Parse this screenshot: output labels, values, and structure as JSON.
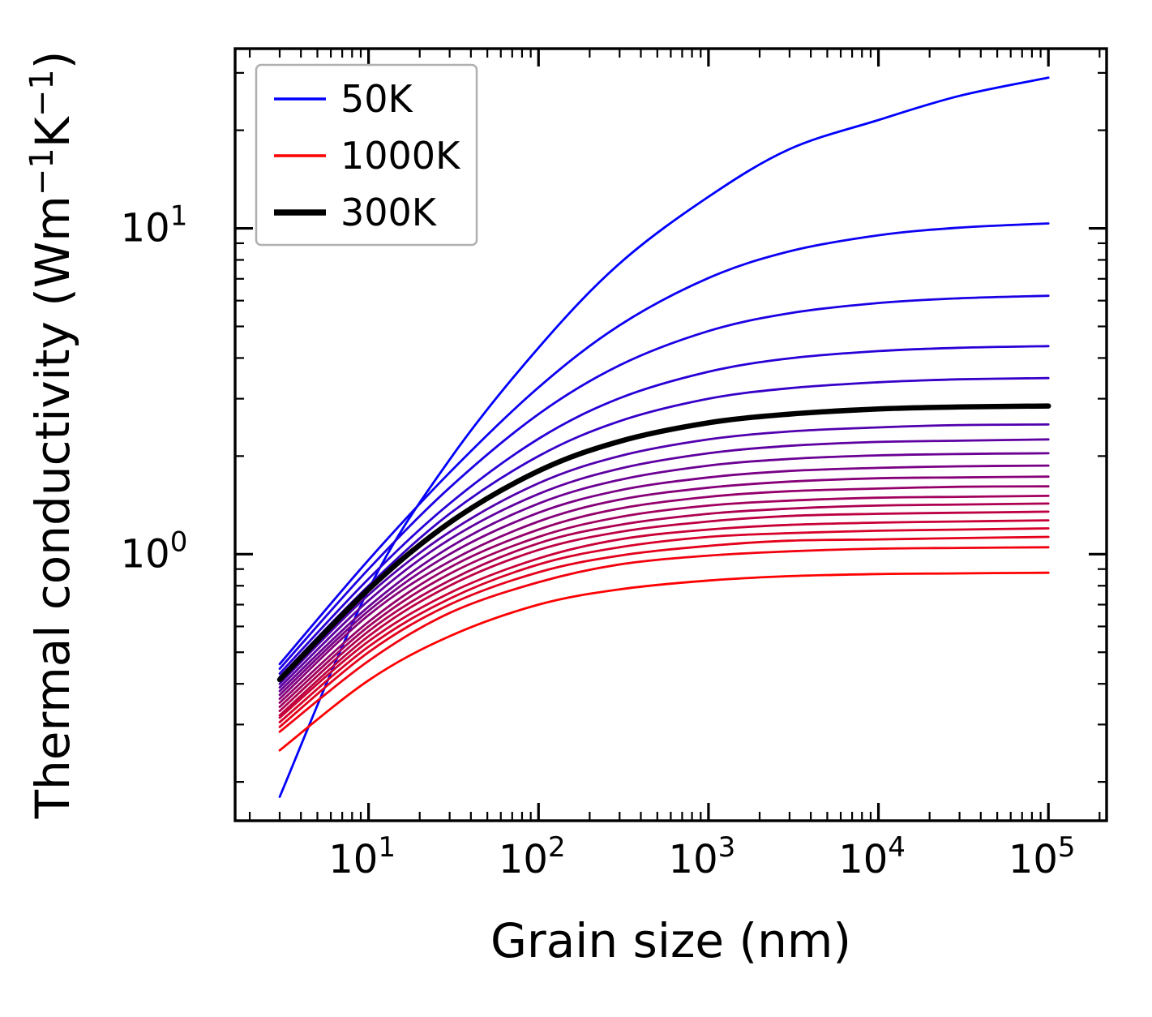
{
  "chart_data": {
    "type": "line",
    "title": "",
    "xlabel": "Grain size (nm)",
    "ylabel": "Thermal conductivity (Wm⁻¹K⁻¹)",
    "ylabel_parts": [
      {
        "t": "Thermal conductivity (Wm"
      },
      {
        "sup": "−1"
      },
      {
        "t": "K"
      },
      {
        "sup": "−1"
      },
      {
        "t": ")"
      }
    ],
    "x_scale": "log",
    "y_scale": "log",
    "xlim": [
      1.64,
      220000
    ],
    "ylim": [
      0.152,
      35.6
    ],
    "grid": false,
    "legend_position": "upper-left",
    "x_ticks": [
      {
        "value": 10,
        "label": "10¹",
        "mantissa": "10",
        "exponent": "1"
      },
      {
        "value": 100,
        "label": "10²",
        "mantissa": "10",
        "exponent": "2"
      },
      {
        "value": 1000,
        "label": "10³",
        "mantissa": "10",
        "exponent": "3"
      },
      {
        "value": 10000,
        "label": "10⁴",
        "mantissa": "10",
        "exponent": "4"
      },
      {
        "value": 100000,
        "label": "10⁵",
        "mantissa": "10",
        "exponent": "5"
      }
    ],
    "y_ticks": [
      {
        "value": 1,
        "label": "10⁰",
        "mantissa": "10",
        "exponent": "0"
      },
      {
        "value": 10,
        "label": "10¹",
        "mantissa": "10",
        "exponent": "1"
      }
    ],
    "grain_sizes_nm": [
      3,
      10,
      30,
      100,
      300,
      1000,
      3000,
      10000,
      30000,
      100000
    ],
    "series": [
      {
        "temperature_K": 50,
        "color": "#0000ff",
        "line_width": 2.8,
        "values": [
          0.18,
          0.78,
          1.95,
          4.3,
          7.8,
          12.5,
          17.5,
          21.5,
          25.5,
          29.0
        ]
      },
      {
        "temperature_K": 100,
        "color": "#0d00f2",
        "line_width": 2.8,
        "values": [
          0.46,
          0.96,
          1.78,
          3.25,
          5.04,
          7.04,
          8.5,
          9.52,
          10.05,
          10.35
        ]
      },
      {
        "temperature_K": 150,
        "color": "#1b00e4",
        "line_width": 2.8,
        "values": [
          0.445,
          0.9,
          1.6,
          2.69,
          3.8,
          4.84,
          5.49,
          5.9,
          6.1,
          6.21
        ]
      },
      {
        "temperature_K": 200,
        "color": "#2800d7",
        "line_width": 2.8,
        "values": [
          0.43,
          0.84,
          1.43,
          2.26,
          3.01,
          3.63,
          3.99,
          4.2,
          4.3,
          4.35
        ]
      },
      {
        "temperature_K": 250,
        "color": "#3600c9",
        "line_width": 2.8,
        "values": [
          0.42,
          0.8,
          1.33,
          2.0,
          2.56,
          3.0,
          3.23,
          3.37,
          3.44,
          3.47
        ]
      },
      {
        "temperature_K": 300,
        "color": "#000000",
        "line_width": 6.5,
        "values": [
          0.412,
          0.78,
          1.25,
          1.8,
          2.22,
          2.53,
          2.69,
          2.79,
          2.83,
          2.85
        ]
      },
      {
        "temperature_K": 350,
        "color": "#5100ae",
        "line_width": 2.8,
        "values": [
          0.4,
          0.75,
          1.17,
          1.65,
          2.0,
          2.25,
          2.38,
          2.45,
          2.49,
          2.5
        ]
      },
      {
        "temperature_K": 400,
        "color": "#5e00a1",
        "line_width": 2.8,
        "values": [
          0.39,
          0.72,
          1.11,
          1.53,
          1.83,
          2.04,
          2.15,
          2.21,
          2.23,
          2.25
        ]
      },
      {
        "temperature_K": 450,
        "color": "#6b0094",
        "line_width": 2.8,
        "values": [
          0.38,
          0.69,
          1.05,
          1.43,
          1.69,
          1.87,
          1.96,
          2.01,
          2.03,
          2.04
        ]
      },
      {
        "temperature_K": 500,
        "color": "#790086",
        "line_width": 2.8,
        "values": [
          0.37,
          0.67,
          1.0,
          1.34,
          1.57,
          1.72,
          1.8,
          1.84,
          1.86,
          1.87
        ]
      },
      {
        "temperature_K": 550,
        "color": "#860079",
        "line_width": 2.8,
        "values": [
          0.36,
          0.65,
          0.95,
          1.26,
          1.47,
          1.6,
          1.67,
          1.71,
          1.72,
          1.73
        ]
      },
      {
        "temperature_K": 600,
        "color": "#94006b",
        "line_width": 2.8,
        "values": [
          0.35,
          0.62,
          0.91,
          1.19,
          1.38,
          1.5,
          1.56,
          1.59,
          1.61,
          1.615
        ]
      },
      {
        "temperature_K": 650,
        "color": "#a1005e",
        "line_width": 2.8,
        "values": [
          0.34,
          0.6,
          0.87,
          1.13,
          1.3,
          1.41,
          1.46,
          1.49,
          1.5,
          1.51
        ]
      },
      {
        "temperature_K": 700,
        "color": "#ae0051",
        "line_width": 2.8,
        "values": [
          0.33,
          0.58,
          0.83,
          1.08,
          1.23,
          1.33,
          1.38,
          1.41,
          1.42,
          1.43
        ]
      },
      {
        "temperature_K": 750,
        "color": "#bc0043",
        "line_width": 2.8,
        "values": [
          0.32,
          0.56,
          0.8,
          1.03,
          1.17,
          1.26,
          1.31,
          1.33,
          1.34,
          1.35
        ]
      },
      {
        "temperature_K": 800,
        "color": "#c90036",
        "line_width": 2.8,
        "values": [
          0.315,
          0.54,
          0.76,
          0.97,
          1.11,
          1.19,
          1.23,
          1.25,
          1.26,
          1.27
        ]
      },
      {
        "temperature_K": 850,
        "color": "#d70028",
        "line_width": 2.8,
        "values": [
          0.305,
          0.52,
          0.73,
          0.93,
          1.05,
          1.13,
          1.16,
          1.18,
          1.19,
          1.2
        ]
      },
      {
        "temperature_K": 900,
        "color": "#e4001b",
        "line_width": 2.8,
        "values": [
          0.295,
          0.5,
          0.7,
          0.88,
          0.99,
          1.06,
          1.1,
          1.11,
          1.12,
          1.13
        ]
      },
      {
        "temperature_K": 950,
        "color": "#f2000d",
        "line_width": 2.8,
        "values": [
          0.285,
          0.47,
          0.66,
          0.82,
          0.93,
          0.99,
          1.02,
          1.04,
          1.045,
          1.05
        ]
      },
      {
        "temperature_K": 1000,
        "color": "#ff0000",
        "line_width": 2.8,
        "values": [
          0.25,
          0.41,
          0.56,
          0.7,
          0.78,
          0.83,
          0.856,
          0.869,
          0.873,
          0.877
        ]
      }
    ],
    "legend": [
      {
        "label": "50K",
        "color": "#0000ff",
        "line_width": 3.5
      },
      {
        "label": "1000K",
        "color": "#ff0000",
        "line_width": 3.5
      },
      {
        "label": "300K",
        "color": "#000000",
        "line_width": 7.5
      }
    ],
    "colors": {
      "background": "#ffffff",
      "spine": "#000000",
      "tick": "#000000",
      "legend_border": "#b0b0b0",
      "legend_background": "#ffffff",
      "cold_color": "#0000ff",
      "hot_color": "#ff0000",
      "highlight_color": "#000000"
    }
  }
}
